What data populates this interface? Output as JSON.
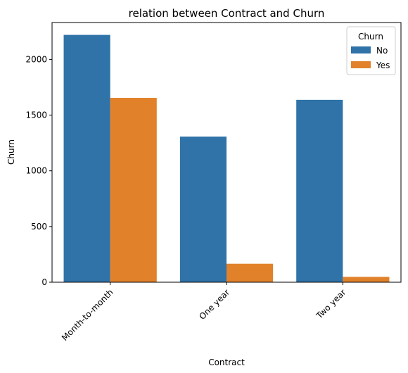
{
  "chart_data": {
    "type": "bar",
    "title": "relation between Contract and Churn",
    "xlabel": "Contract",
    "ylabel": "Churn",
    "categories": [
      "Month-to-month",
      "One year",
      "Two year"
    ],
    "series": [
      {
        "name": "No",
        "color": "#2f73a8",
        "values": [
          2220,
          1307,
          1637
        ]
      },
      {
        "name": "Yes",
        "color": "#e1822b",
        "values": [
          1655,
          166,
          48
        ]
      }
    ],
    "ylim": [
      0,
      2331
    ],
    "yticks": [
      0,
      500,
      1000,
      1500,
      2000
    ],
    "legend": {
      "title": "Churn",
      "position": "top-right"
    },
    "grid": false
  }
}
